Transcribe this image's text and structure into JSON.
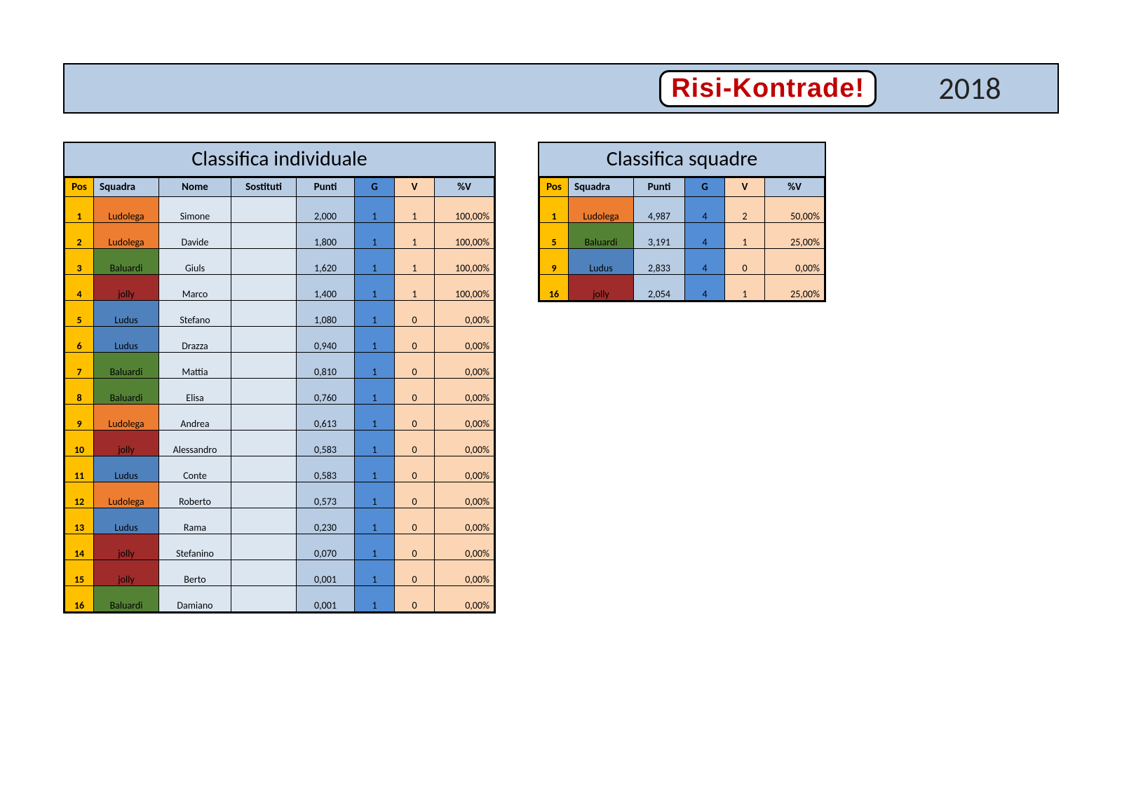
{
  "header": {
    "logo_text": "Risi-Kontrade!",
    "year": "2018",
    "bg_color": "#b8cce4"
  },
  "team_colors": {
    "Ludolega": "#ed7d31",
    "Baluardi": "#548235",
    "jolly": "#a02b2b",
    "Ludus": "#4f81bd"
  },
  "individuale": {
    "title": "Classifica individuale",
    "columns": [
      "Pos",
      "Squadra",
      "Nome",
      "Sostituti",
      "Punti",
      "G",
      "V",
      "%V"
    ],
    "rows": [
      {
        "pos": "1",
        "team": "Ludolega",
        "name": "Simone",
        "sub": "",
        "punti": "2,000",
        "g": "1",
        "v": "1",
        "pct": "100,00%"
      },
      {
        "pos": "2",
        "team": "Ludolega",
        "name": "Davide",
        "sub": "",
        "punti": "1,800",
        "g": "1",
        "v": "1",
        "pct": "100,00%"
      },
      {
        "pos": "3",
        "team": "Baluardi",
        "name": "Giuls",
        "sub": "",
        "punti": "1,620",
        "g": "1",
        "v": "1",
        "pct": "100,00%"
      },
      {
        "pos": "4",
        "team": "jolly",
        "name": "Marco",
        "sub": "",
        "punti": "1,400",
        "g": "1",
        "v": "1",
        "pct": "100,00%"
      },
      {
        "pos": "5",
        "team": "Ludus",
        "name": "Stefano",
        "sub": "",
        "punti": "1,080",
        "g": "1",
        "v": "0",
        "pct": "0,00%"
      },
      {
        "pos": "6",
        "team": "Ludus",
        "name": "Drazza",
        "sub": "",
        "punti": "0,940",
        "g": "1",
        "v": "0",
        "pct": "0,00%"
      },
      {
        "pos": "7",
        "team": "Baluardi",
        "name": "Mattia",
        "sub": "",
        "punti": "0,810",
        "g": "1",
        "v": "0",
        "pct": "0,00%"
      },
      {
        "pos": "8",
        "team": "Baluardi",
        "name": "Elisa",
        "sub": "",
        "punti": "0,760",
        "g": "1",
        "v": "0",
        "pct": "0,00%"
      },
      {
        "pos": "9",
        "team": "Ludolega",
        "name": "Andrea",
        "sub": "",
        "punti": "0,613",
        "g": "1",
        "v": "0",
        "pct": "0,00%"
      },
      {
        "pos": "10",
        "team": "jolly",
        "name": "Alessandro",
        "sub": "",
        "punti": "0,583",
        "g": "1",
        "v": "0",
        "pct": "0,00%"
      },
      {
        "pos": "11",
        "team": "Ludus",
        "name": "Conte",
        "sub": "",
        "punti": "0,583",
        "g": "1",
        "v": "0",
        "pct": "0,00%"
      },
      {
        "pos": "12",
        "team": "Ludolega",
        "name": "Roberto",
        "sub": "",
        "punti": "0,573",
        "g": "1",
        "v": "0",
        "pct": "0,00%"
      },
      {
        "pos": "13",
        "team": "Ludus",
        "name": "Rama",
        "sub": "",
        "punti": "0,230",
        "g": "1",
        "v": "0",
        "pct": "0,00%"
      },
      {
        "pos": "14",
        "team": "jolly",
        "name": "Stefanino",
        "sub": "",
        "punti": "0,070",
        "g": "1",
        "v": "0",
        "pct": "0,00%"
      },
      {
        "pos": "15",
        "team": "jolly",
        "name": "Berto",
        "sub": "",
        "punti": "0,001",
        "g": "1",
        "v": "0",
        "pct": "0,00%"
      },
      {
        "pos": "16",
        "team": "Baluardi",
        "name": "Damiano",
        "sub": "",
        "punti": "0,001",
        "g": "1",
        "v": "0",
        "pct": "0,00%"
      }
    ]
  },
  "squadre": {
    "title": "Classifica squadre",
    "columns": [
      "Pos",
      "Squadra",
      "Punti",
      "G",
      "V",
      "%V"
    ],
    "rows": [
      {
        "pos": "1",
        "team": "Ludolega",
        "punti": "4,987",
        "g": "4",
        "v": "2",
        "pct": "50,00%"
      },
      {
        "pos": "5",
        "team": "Baluardi",
        "punti": "3,191",
        "g": "4",
        "v": "1",
        "pct": "25,00%"
      },
      {
        "pos": "9",
        "team": "Ludus",
        "punti": "2,833",
        "g": "4",
        "v": "0",
        "pct": "0,00%"
      },
      {
        "pos": "16",
        "team": "jolly",
        "punti": "2,054",
        "g": "4",
        "v": "1",
        "pct": "25,00%"
      }
    ]
  },
  "cell_colors": {
    "pos_bg": "#ffc000",
    "header_bg": "#b8cce4",
    "name_bg": "#dce6f1",
    "punti_bg": "#b8cce4",
    "g_bg": "#538dd5",
    "v_bg": "#fcd5b4",
    "pct_bg": "#fcd5b4"
  }
}
